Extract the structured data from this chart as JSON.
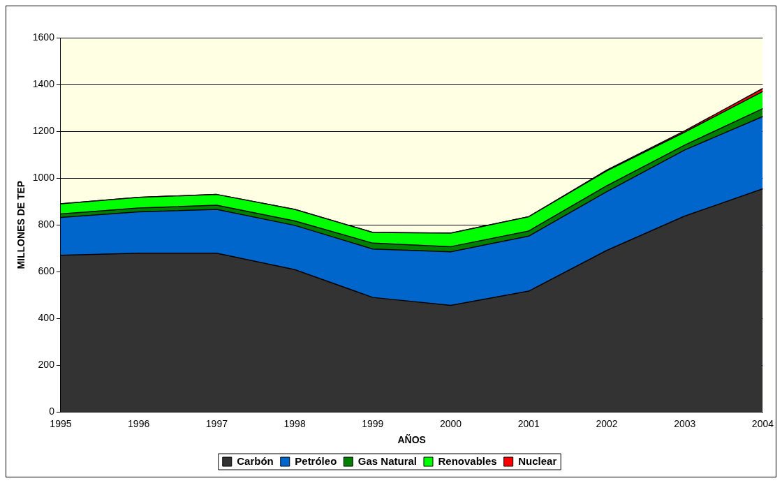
{
  "chart_data": {
    "type": "area",
    "stacked": true,
    "xlabel": "AÑOS",
    "ylabel": "MILLONES DE TEP",
    "categories": [
      "1995",
      "1996",
      "1997",
      "1998",
      "1999",
      "2000",
      "2001",
      "2002",
      "2003",
      "2004"
    ],
    "ylim": [
      0,
      1600
    ],
    "yticks": [
      0,
      200,
      400,
      600,
      800,
      1000,
      1200,
      1400,
      1600
    ],
    "grid": "y",
    "legend": "bottom",
    "series": [
      {
        "name": "Carbón",
        "color": "#333333",
        "values": [
          670,
          679,
          679,
          609,
          490,
          456,
          517,
          691,
          838,
          954
        ]
      },
      {
        "name": "Petróleo",
        "color": "#0066cc",
        "values": [
          162,
          177,
          187,
          189,
          207,
          229,
          235,
          251,
          282,
          309
        ]
      },
      {
        "name": "Gas Natural",
        "color": "#008000",
        "values": [
          15,
          16,
          18,
          19,
          25,
          22,
          22,
          25,
          21,
          34
        ]
      },
      {
        "name": "Renovables",
        "color": "#00ff00",
        "values": [
          43,
          46,
          46,
          49,
          46,
          58,
          61,
          64,
          55,
          73
        ]
      },
      {
        "name": "Nuclear",
        "color": "#ff0000",
        "values": [
          0,
          0,
          0,
          0,
          0,
          0,
          0,
          3,
          6,
          13
        ]
      }
    ]
  }
}
